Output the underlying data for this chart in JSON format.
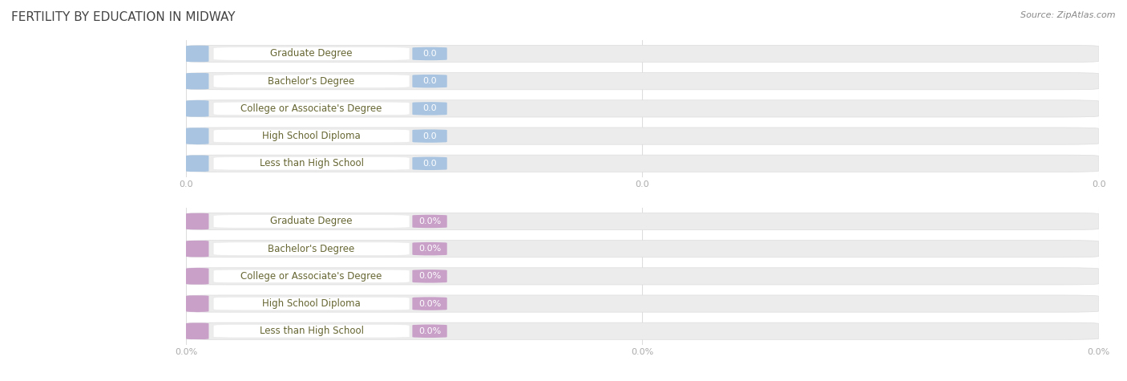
{
  "title": "FERTILITY BY EDUCATION IN MIDWAY",
  "source": "Source: ZipAtlas.com",
  "categories": [
    "Less than High School",
    "High School Diploma",
    "College or Associate's Degree",
    "Bachelor's Degree",
    "Graduate Degree"
  ],
  "top_values": [
    0.0,
    0.0,
    0.0,
    0.0,
    0.0
  ],
  "bottom_values": [
    0.0,
    0.0,
    0.0,
    0.0,
    0.0
  ],
  "top_bar_color": "#a8c4e0",
  "bottom_bar_color": "#c8a0c8",
  "bar_bg_color": "#ececec",
  "bar_inner_color": "#ffffff",
  "label_text_color": "#666633",
  "value_text_color": "#ffffff",
  "grid_color": "#dddddd",
  "tick_color": "#aaaaaa",
  "title_color": "#444444",
  "source_color": "#888888",
  "title_fontsize": 11,
  "label_fontsize": 8.5,
  "value_fontsize": 8,
  "tick_fontsize": 8,
  "source_fontsize": 8,
  "bg_color": "#ffffff"
}
